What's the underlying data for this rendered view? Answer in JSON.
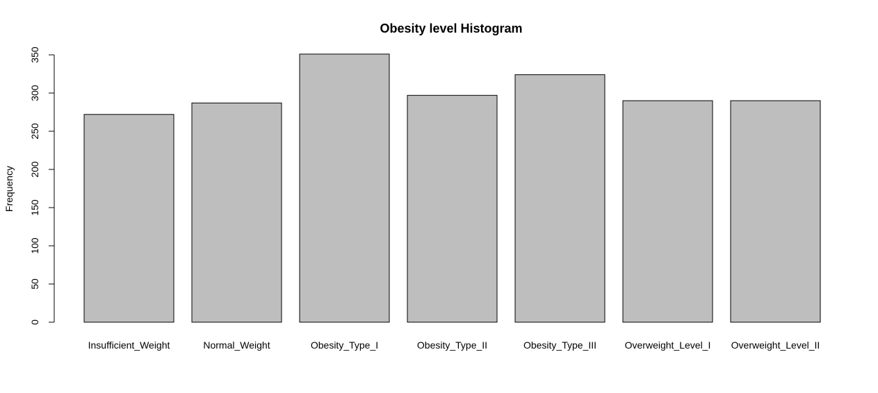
{
  "chart_data": {
    "type": "bar",
    "title": "Obesity level Histogram",
    "xlabel": "",
    "ylabel": "Frequency",
    "categories": [
      "Insufficient_Weight",
      "Normal_Weight",
      "Obesity_Type_I",
      "Obesity_Type_II",
      "Obesity_Type_III",
      "Overweight_Level_I",
      "Overweight_Level_II"
    ],
    "values": [
      272,
      287,
      351,
      297,
      324,
      290,
      290
    ],
    "ylim": [
      0,
      350
    ],
    "yticks": [
      0,
      50,
      100,
      150,
      200,
      250,
      300,
      350
    ],
    "grid": false,
    "bar_color": "#bebebe",
    "bar_edge_color": "#000000"
  }
}
